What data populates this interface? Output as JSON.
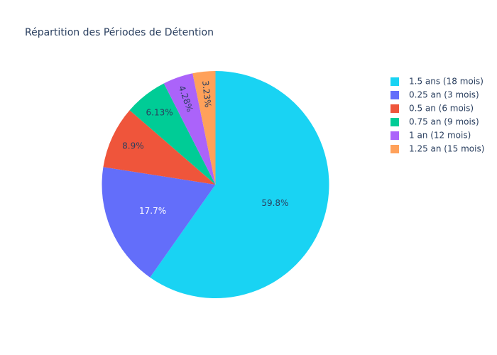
{
  "chart_data": {
    "type": "pie",
    "title": "Répartition des Périodes de Détention",
    "legend_position": "top-right",
    "slices": [
      {
        "label": "1.5 ans (18 mois)",
        "value": 59.8,
        "text": "59.8%",
        "color": "#19d3f3",
        "text_color": "#2a3f5f"
      },
      {
        "label": "0.25 an (3 mois)",
        "value": 17.7,
        "text": "17.7%",
        "color": "#636efa",
        "text_color": "#ffffff"
      },
      {
        "label": "0.5 an (6 mois)",
        "value": 8.9,
        "text": "8.9%",
        "color": "#ef553b",
        "text_color": "#2a3f5f"
      },
      {
        "label": "0.75 an (9 mois)",
        "value": 6.13,
        "text": "6.13%",
        "color": "#00cc96",
        "text_color": "#2a3f5f"
      },
      {
        "label": "1 an (12 mois)",
        "value": 4.28,
        "text": "4.28%",
        "color": "#ab63fa",
        "text_color": "#2a3f5f"
      },
      {
        "label": "1.25 an (15 mois)",
        "value": 3.23,
        "text": "3.23%",
        "color": "#ffa15a",
        "text_color": "#2a3f5f"
      }
    ]
  }
}
